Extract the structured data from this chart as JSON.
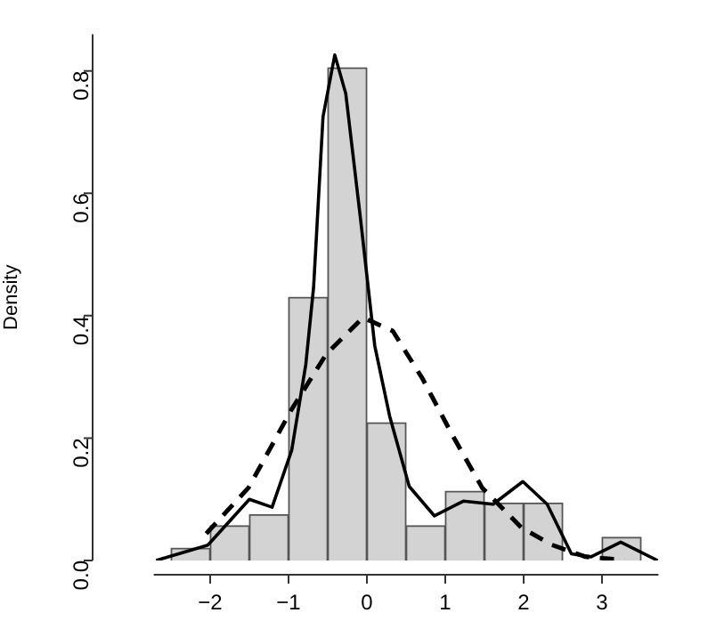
{
  "chart_data": {
    "type": "histogram",
    "ylabel": "Density",
    "bins": [
      -2.5,
      -2,
      -1.5,
      -1,
      -0.5,
      0,
      0.5,
      1,
      1.5,
      2,
      2.5,
      3,
      3.5
    ],
    "values": [
      0.02,
      0.057,
      0.075,
      0.43,
      0.805,
      0.225,
      0.057,
      0.113,
      0.094,
      0.094,
      0,
      0.038
    ],
    "color": "#d3d3d3",
    "xlim": [
      -2.72,
      3.72
    ],
    "ylim": [
      0,
      0.86
    ],
    "xticks": [
      -2,
      -1,
      0,
      1,
      2,
      3
    ],
    "yticks": [
      {
        "value": 0,
        "label": "0.0"
      },
      {
        "value": 0.2,
        "label": "0.2"
      },
      {
        "value": 0.4,
        "label": "0.4"
      },
      {
        "value": 0.6,
        "label": "0.6"
      },
      {
        "value": 0.8,
        "label": "0.8"
      }
    ],
    "grid": false,
    "legend": false,
    "series": [
      {
        "type": "line",
        "color": "#000000",
        "line_style": "solid",
        "x": [
          -2.69,
          -2.03,
          -1.5,
          -1.21,
          -0.96,
          -0.78,
          -0.68,
          -0.56,
          -0.41,
          -0.27,
          -0.085,
          0.1,
          0.29,
          0.54,
          0.86,
          1.23,
          1.61,
          1.99,
          2.3,
          2.61,
          2.86,
          3.24,
          3.71
        ],
        "values": [
          0,
          0.025,
          0.1,
          0.087,
          0.18,
          0.32,
          0.447,
          0.725,
          0.826,
          0.763,
          0.562,
          0.351,
          0.236,
          0.121,
          0.073,
          0.097,
          0.092,
          0.129,
          0.092,
          0.011,
          0.006,
          0.03,
          0
        ]
      },
      {
        "type": "line",
        "color": "#000000",
        "line_style": "dashed",
        "x": [
          -2.05,
          -1.51,
          -0.96,
          -0.52,
          -0.05,
          0.33,
          0.71,
          1.09,
          1.47,
          1.97,
          2.35,
          2.79,
          3.29
        ],
        "values": [
          0.044,
          0.119,
          0.247,
          0.337,
          0.397,
          0.375,
          0.297,
          0.205,
          0.119,
          0.054,
          0.026,
          0.006,
          0.001
        ]
      }
    ]
  }
}
